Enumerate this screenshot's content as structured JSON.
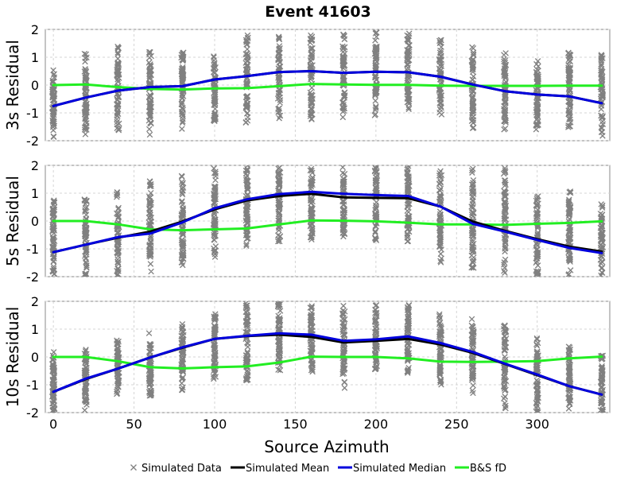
{
  "chart_data": {
    "type": "line",
    "title": "Event 41603",
    "xlabel": "Source Azimuth",
    "xlim": [
      -5,
      345
    ],
    "xticks": [
      0,
      50,
      100,
      150,
      200,
      250,
      300
    ],
    "x": [
      0,
      20,
      40,
      60,
      80,
      100,
      120,
      140,
      160,
      180,
      200,
      220,
      240,
      260,
      280,
      300,
      320,
      340
    ],
    "legend": {
      "placement": "bottom",
      "entries": [
        "Simulated Data",
        "Simulated Mean",
        "Simulated Median",
        "B&S fD"
      ]
    },
    "colors": {
      "data": "#808080",
      "mean": "#000000",
      "median": "#0000dd",
      "bs": "#22ee22"
    },
    "panels": [
      {
        "ylabel": "3s Residual",
        "ylim": [
          -2,
          2
        ],
        "yticks": [
          -2,
          -1,
          0,
          1,
          2
        ],
        "scatter_spread": [
          [
            -1.9,
            0.6
          ],
          [
            -1.9,
            1.2
          ],
          [
            -1.7,
            1.4
          ],
          [
            -1.8,
            1.3
          ],
          [
            -1.6,
            1.2
          ],
          [
            -1.3,
            1.3
          ],
          [
            -1.4,
            1.8
          ],
          [
            -1.2,
            1.95
          ],
          [
            -1.3,
            1.9
          ],
          [
            -1.2,
            1.85
          ],
          [
            -1.1,
            1.9
          ],
          [
            -1.0,
            1.95
          ],
          [
            -1.2,
            1.7
          ],
          [
            -1.6,
            1.4
          ],
          [
            -1.6,
            1.2
          ],
          [
            -1.6,
            0.9
          ],
          [
            -1.7,
            1.2
          ],
          [
            -1.9,
            1.1
          ]
        ],
        "series": [
          {
            "name": "Simulated Mean",
            "values": [
              -0.75,
              -0.45,
              -0.2,
              -0.07,
              -0.04,
              0.2,
              0.32,
              0.47,
              0.5,
              0.44,
              0.48,
              0.46,
              0.3,
              0.02,
              -0.22,
              -0.34,
              -0.41,
              -0.65
            ]
          },
          {
            "name": "Simulated Median",
            "values": [
              -0.75,
              -0.45,
              -0.2,
              -0.07,
              -0.04,
              0.2,
              0.32,
              0.47,
              0.5,
              0.44,
              0.48,
              0.46,
              0.3,
              0.02,
              -0.22,
              -0.34,
              -0.41,
              -0.65
            ]
          },
          {
            "name": "B&S fD",
            "values": [
              0.0,
              0.02,
              -0.07,
              -0.14,
              -0.16,
              -0.12,
              -0.11,
              -0.04,
              0.04,
              0.02,
              0.01,
              0.01,
              -0.02,
              -0.03,
              -0.03,
              -0.03,
              -0.02,
              -0.02
            ]
          }
        ]
      },
      {
        "ylabel": "5s Residual",
        "ylim": [
          -2,
          2
        ],
        "yticks": [
          -2,
          -1,
          0,
          1,
          2
        ],
        "scatter_spread": [
          [
            -2.0,
            0.8
          ],
          [
            -2.0,
            0.85
          ],
          [
            -2.0,
            1.1
          ],
          [
            -1.9,
            1.5
          ],
          [
            -1.8,
            1.7
          ],
          [
            -1.3,
            1.9
          ],
          [
            -0.9,
            2.0
          ],
          [
            -0.9,
            2.0
          ],
          [
            -0.7,
            2.0
          ],
          [
            -0.6,
            2.0
          ],
          [
            -0.7,
            2.0
          ],
          [
            -0.8,
            2.0
          ],
          [
            -1.5,
            1.8
          ],
          [
            -1.8,
            2.0
          ],
          [
            -1.9,
            1.9
          ],
          [
            -2.0,
            1.0
          ],
          [
            -2.0,
            1.1
          ],
          [
            -2.0,
            0.65
          ]
        ],
        "series": [
          {
            "name": "Simulated Mean",
            "values": [
              -1.12,
              -0.85,
              -0.6,
              -0.38,
              -0.02,
              0.42,
              0.74,
              0.9,
              0.98,
              0.85,
              0.83,
              0.82,
              0.52,
              -0.02,
              -0.35,
              -0.65,
              -0.92,
              -1.1
            ]
          },
          {
            "name": "Simulated Median",
            "values": [
              -1.12,
              -0.85,
              -0.58,
              -0.45,
              -0.05,
              0.46,
              0.78,
              0.97,
              1.05,
              0.98,
              0.93,
              0.9,
              0.52,
              -0.1,
              -0.38,
              -0.68,
              -0.97,
              -1.15
            ]
          },
          {
            "name": "B&S fD",
            "values": [
              0.0,
              0.0,
              -0.12,
              -0.3,
              -0.33,
              -0.3,
              -0.27,
              -0.12,
              0.02,
              0.01,
              -0.01,
              -0.06,
              -0.12,
              -0.12,
              -0.14,
              -0.1,
              -0.07,
              -0.01
            ]
          }
        ]
      },
      {
        "ylabel": "10s Residual",
        "ylim": [
          -2,
          2
        ],
        "yticks": [
          -2,
          -1,
          0,
          1,
          2
        ],
        "scatter_spread": [
          [
            -2.0,
            0.2
          ],
          [
            -2.0,
            0.35
          ],
          [
            -1.4,
            0.6
          ],
          [
            -1.4,
            0.9
          ],
          [
            -1.2,
            1.2
          ],
          [
            -1.0,
            1.6
          ],
          [
            -0.9,
            1.95
          ],
          [
            -0.5,
            2.0
          ],
          [
            -0.6,
            2.0
          ],
          [
            -1.2,
            1.9
          ],
          [
            -0.5,
            1.9
          ],
          [
            -0.6,
            2.0
          ],
          [
            -1.0,
            1.6
          ],
          [
            -1.4,
            1.4
          ],
          [
            -1.9,
            1.2
          ],
          [
            -2.0,
            0.7
          ],
          [
            -2.0,
            0.45
          ],
          [
            -2.0,
            0.05
          ]
        ],
        "series": [
          {
            "name": "Simulated Mean",
            "values": [
              -1.25,
              -0.8,
              -0.42,
              -0.02,
              0.33,
              0.65,
              0.75,
              0.8,
              0.72,
              0.52,
              0.58,
              0.65,
              0.45,
              0.15,
              -0.25,
              -0.65,
              -1.05,
              -1.35
            ]
          },
          {
            "name": "Simulated Median",
            "values": [
              -1.25,
              -0.78,
              -0.42,
              -0.02,
              0.35,
              0.65,
              0.76,
              0.85,
              0.8,
              0.58,
              0.63,
              0.74,
              0.5,
              0.18,
              -0.24,
              -0.63,
              -1.05,
              -1.35
            ]
          },
          {
            "name": "B&S fD",
            "values": [
              0.0,
              0.0,
              -0.15,
              -0.37,
              -0.41,
              -0.37,
              -0.34,
              -0.2,
              0.01,
              0.0,
              0.0,
              -0.05,
              -0.17,
              -0.18,
              -0.17,
              -0.15,
              -0.05,
              0.01
            ]
          }
        ]
      }
    ]
  }
}
